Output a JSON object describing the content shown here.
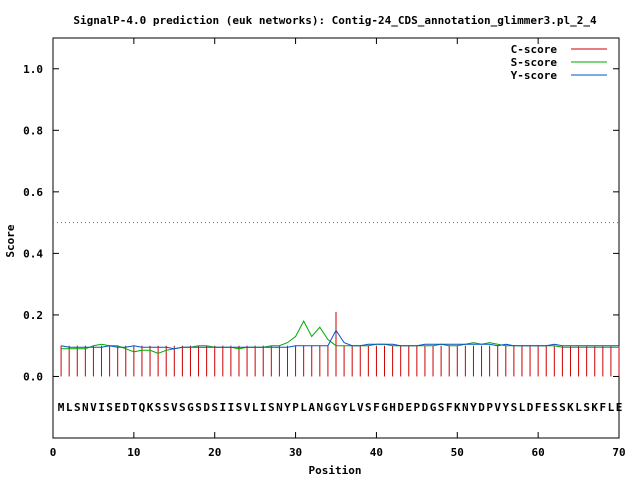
{
  "chart_data": {
    "type": "line",
    "title": "SignalP-4.0 prediction (euk networks): Contig-24_CDS_annotation_glimmer3.pl_2_4",
    "xlabel": "Position",
    "ylabel": "Score",
    "xlim": [
      0,
      70
    ],
    "ylim": [
      -0.2,
      1.1
    ],
    "x_ticks": [
      0,
      10,
      20,
      30,
      40,
      50,
      60,
      70
    ],
    "x_tick_labels": [
      "0",
      "10",
      "20",
      "30",
      "40",
      "50",
      "60",
      "70"
    ],
    "y_ticks": [
      0.0,
      0.2,
      0.4,
      0.6,
      0.8,
      1.0
    ],
    "y_tick_labels": [
      "0.0",
      "0.2",
      "0.4",
      "0.6",
      "0.8",
      "1.0"
    ],
    "grid": false,
    "legend_position": "top-right",
    "threshold": {
      "value": 0.5,
      "color": "#ff00ff",
      "style": "dotted"
    },
    "sequence": "MLSNVISEDTQKSSVSGSDSIISVLISNYPLANGGYLVSFGHDEPDGSFKNYDPVYSLDFESSKLSKFLE",
    "series": [
      {
        "name": "C-score",
        "color": "#cc0000",
        "style": "impulse",
        "x": [
          1,
          2,
          3,
          4,
          5,
          6,
          7,
          8,
          9,
          10,
          11,
          12,
          13,
          14,
          15,
          16,
          17,
          18,
          19,
          20,
          21,
          22,
          23,
          24,
          25,
          26,
          27,
          28,
          29,
          30,
          31,
          32,
          33,
          34,
          35,
          36,
          37,
          38,
          39,
          40,
          41,
          42,
          43,
          44,
          45,
          46,
          47,
          48,
          49,
          50,
          51,
          52,
          53,
          54,
          55,
          56,
          57,
          58,
          59,
          60,
          61,
          62,
          63,
          64,
          65,
          66,
          67,
          68,
          69,
          70
        ],
        "values": [
          0.1,
          0.1,
          0.1,
          0.1,
          0.1,
          0.1,
          0.1,
          0.1,
          0.1,
          0.1,
          0.1,
          0.1,
          0.1,
          0.1,
          0.1,
          0.1,
          0.1,
          0.1,
          0.1,
          0.1,
          0.1,
          0.1,
          0.1,
          0.1,
          0.1,
          0.1,
          0.1,
          0.1,
          0.1,
          0.1,
          0.1,
          0.1,
          0.1,
          0.1,
          0.21,
          0.1,
          0.1,
          0.1,
          0.1,
          0.1,
          0.1,
          0.1,
          0.1,
          0.1,
          0.1,
          0.1,
          0.1,
          0.1,
          0.1,
          0.1,
          0.1,
          0.1,
          0.1,
          0.1,
          0.1,
          0.1,
          0.1,
          0.1,
          0.1,
          0.1,
          0.1,
          0.1,
          0.1,
          0.1,
          0.1,
          0.1,
          0.1,
          0.1,
          0.1,
          0.1
        ]
      },
      {
        "name": "S-score",
        "color": "#00aa00",
        "style": "line",
        "x": [
          1,
          2,
          3,
          4,
          5,
          6,
          7,
          8,
          9,
          10,
          11,
          12,
          13,
          14,
          15,
          16,
          17,
          18,
          19,
          20,
          21,
          22,
          23,
          24,
          25,
          26,
          27,
          28,
          29,
          30,
          31,
          32,
          33,
          34,
          35,
          36,
          37,
          38,
          39,
          40,
          41,
          42,
          43,
          44,
          45,
          46,
          47,
          48,
          49,
          50,
          51,
          52,
          53,
          54,
          55,
          56,
          57,
          58,
          59,
          60,
          61,
          62,
          63,
          64,
          65,
          66,
          67,
          68,
          69,
          70
        ],
        "values": [
          0.09,
          0.09,
          0.09,
          0.09,
          0.1,
          0.105,
          0.1,
          0.1,
          0.09,
          0.08,
          0.085,
          0.085,
          0.075,
          0.085,
          0.09,
          0.095,
          0.095,
          0.1,
          0.1,
          0.095,
          0.095,
          0.095,
          0.09,
          0.095,
          0.095,
          0.095,
          0.1,
          0.1,
          0.11,
          0.13,
          0.18,
          0.13,
          0.16,
          0.12,
          0.1,
          0.1,
          0.1,
          0.1,
          0.1,
          0.105,
          0.105,
          0.1,
          0.1,
          0.1,
          0.1,
          0.1,
          0.1,
          0.105,
          0.1,
          0.1,
          0.105,
          0.11,
          0.105,
          0.11,
          0.105,
          0.1,
          0.1,
          0.1,
          0.1,
          0.1,
          0.1,
          0.1,
          0.095,
          0.095,
          0.095,
          0.095,
          0.095,
          0.095,
          0.095,
          0.095
        ]
      },
      {
        "name": "Y-score",
        "color": "#0055cc",
        "style": "line",
        "x": [
          1,
          2,
          3,
          4,
          5,
          6,
          7,
          8,
          9,
          10,
          11,
          12,
          13,
          14,
          15,
          16,
          17,
          18,
          19,
          20,
          21,
          22,
          23,
          24,
          25,
          26,
          27,
          28,
          29,
          30,
          31,
          32,
          33,
          34,
          35,
          36,
          37,
          38,
          39,
          40,
          41,
          42,
          43,
          44,
          45,
          46,
          47,
          48,
          49,
          50,
          51,
          52,
          53,
          54,
          55,
          56,
          57,
          58,
          59,
          60,
          61,
          62,
          63,
          64,
          65,
          66,
          67,
          68,
          69,
          70
        ],
        "values": [
          0.1,
          0.095,
          0.095,
          0.095,
          0.095,
          0.095,
          0.1,
          0.095,
          0.095,
          0.1,
          0.095,
          0.095,
          0.095,
          0.095,
          0.09,
          0.095,
          0.095,
          0.095,
          0.095,
          0.095,
          0.095,
          0.095,
          0.095,
          0.095,
          0.095,
          0.095,
          0.095,
          0.095,
          0.095,
          0.1,
          0.1,
          0.1,
          0.1,
          0.1,
          0.15,
          0.11,
          0.1,
          0.1,
          0.105,
          0.105,
          0.105,
          0.105,
          0.1,
          0.1,
          0.1,
          0.105,
          0.105,
          0.105,
          0.105,
          0.105,
          0.105,
          0.105,
          0.105,
          0.105,
          0.1,
          0.105,
          0.1,
          0.1,
          0.1,
          0.1,
          0.1,
          0.105,
          0.1,
          0.1,
          0.1,
          0.1,
          0.1,
          0.1,
          0.1,
          0.1
        ]
      }
    ]
  }
}
